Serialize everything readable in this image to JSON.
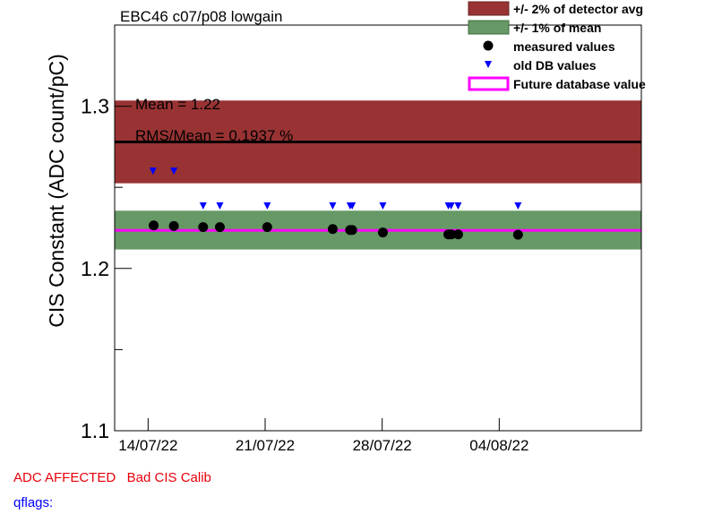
{
  "title": "EBC46 c07/p08 lowgain",
  "stats": {
    "mean": "Mean = 1.22",
    "rms": "RMS/Mean = 0.1937 %"
  },
  "legend": [
    {
      "label": "+/- 2% of detector avg",
      "kind": "box",
      "color": "#993333"
    },
    {
      "label": "+/- 1% of mean",
      "kind": "box",
      "color": "#669966"
    },
    {
      "label": "measured values",
      "kind": "dot",
      "color": "#000000"
    },
    {
      "label": "old DB values",
      "kind": "triangle",
      "color": "#0000ff"
    },
    {
      "label": "Future database value",
      "kind": "line",
      "color": "#ff00ff"
    }
  ],
  "footer": {
    "flags": "ADC AFFECTED   Bad CIS Calib",
    "qflags": "qflags:"
  },
  "chart_data": {
    "type": "scatter",
    "ylabel": "CIS Constant (ADC count/pC)",
    "xlabel": "",
    "ylim": [
      1.1,
      1.35
    ],
    "xlim": [
      "2022-07-12T00:00",
      "2022-08-12T12:00"
    ],
    "x_ticks": [
      "14/07/22",
      "21/07/22",
      "28/07/22",
      "04/08/22"
    ],
    "x_tick_dates": [
      "2022-07-14",
      "2022-07-21",
      "2022-07-28",
      "2022-08-04"
    ],
    "y_ticks": [
      1.1,
      1.2,
      1.3
    ],
    "bands": [
      {
        "name": "+/- 2% of detector avg",
        "ymin": 1.2525,
        "ymax": 1.3035,
        "color": "#993333"
      },
      {
        "name": "+/- 1% of mean",
        "ymin": 1.2117,
        "ymax": 1.2356,
        "color": "#669966"
      }
    ],
    "hlines": [
      {
        "name": "detector avg",
        "y": 1.278,
        "color": "#000000"
      },
      {
        "name": "Future database value",
        "y": 1.2235,
        "color": "#ff00ff"
      }
    ],
    "series": [
      {
        "name": "measured values",
        "marker": "dot",
        "color": "#000000",
        "x": [
          "2022-07-14T08:00",
          "2022-07-15T13:00",
          "2022-07-17T07:00",
          "2022-07-18T07:00",
          "2022-07-21T03:00",
          "2022-07-25T01:00",
          "2022-07-26T02:00",
          "2022-07-26T05:00",
          "2022-07-28T01:00",
          "2022-07-31T23:00",
          "2022-08-01T03:00",
          "2022-08-01T13:00",
          "2022-08-05T03:00"
        ],
        "y": [
          1.2265,
          1.2262,
          1.2255,
          1.2255,
          1.2255,
          1.2243,
          1.2237,
          1.2237,
          1.2222,
          1.221,
          1.221,
          1.221,
          1.2208
        ]
      },
      {
        "name": "old DB values",
        "marker": "triangle",
        "color": "#0000ff",
        "x": [
          "2022-07-14T07:00",
          "2022-07-15T13:00",
          "2022-07-17T07:00",
          "2022-07-18T07:00",
          "2022-07-21T03:00",
          "2022-07-25T01:00",
          "2022-07-26T02:00",
          "2022-07-26T05:00",
          "2022-07-28T01:00",
          "2022-07-31T23:00",
          "2022-08-01T03:00",
          "2022-08-01T13:00",
          "2022-08-05T03:00"
        ],
        "y": [
          1.26,
          1.26,
          1.2385,
          1.2385,
          1.2385,
          1.2385,
          1.2385,
          1.2385,
          1.2385,
          1.2385,
          1.2385,
          1.2385,
          1.2385
        ]
      }
    ]
  }
}
